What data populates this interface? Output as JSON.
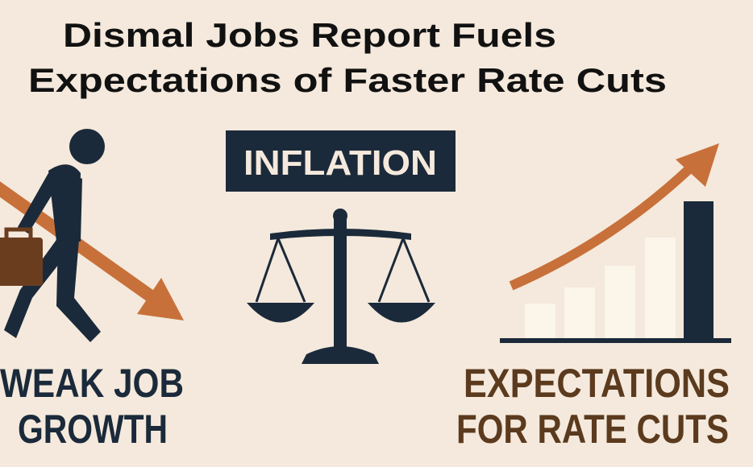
{
  "header": {
    "title_lines": [
      "Dismal Jobs Report Fuels",
      "Expectations of Faster Rate Cuts"
    ]
  },
  "panels": [
    {
      "label_lines": [
        "WEAK JOB",
        "GROWTH"
      ]
    },
    {
      "label_lines": [
        "INFLATION"
      ]
    },
    {
      "label_lines": [
        "EXPECTATIONS",
        "FOR RATE CUTS"
      ]
    }
  ]
}
